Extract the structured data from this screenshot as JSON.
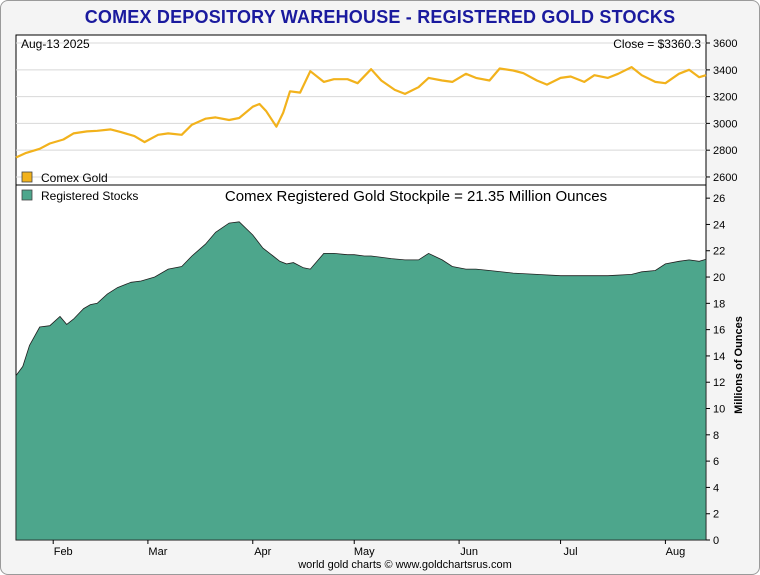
{
  "title": "COMEX DEPOSITORY WAREHOUSE - REGISTERED GOLD STOCKS",
  "date_label": "Aug-13  2025",
  "close_label": "Close = $3360.3",
  "subtitle": "Comex Registered Gold Stockpile = 21.35 Million Ounces",
  "credit": "world gold charts © www.goldchartsrus.com",
  "colors": {
    "title": "#1a1a9e",
    "gold_line": "#f2b21c",
    "stocks_fill": "#4da68c",
    "stocks_edge": "#1f1f1f"
  },
  "chart_data": [
    {
      "type": "line",
      "name": "gold-price",
      "legend": "Comex Gold",
      "legend_placement": "bottom-left",
      "y_ticks": [
        2600,
        2800,
        3000,
        3200,
        3400,
        3600
      ],
      "ylim": [
        2540,
        3660
      ],
      "xlim": [
        "2025-01-21",
        "2025-08-13"
      ],
      "grid": true,
      "x": [
        "2025-01-21",
        "2025-01-24",
        "2025-01-28",
        "2025-01-31",
        "2025-02-04",
        "2025-02-07",
        "2025-02-11",
        "2025-02-14",
        "2025-02-18",
        "2025-02-21",
        "2025-02-25",
        "2025-02-28",
        "2025-03-04",
        "2025-03-07",
        "2025-03-11",
        "2025-03-14",
        "2025-03-18",
        "2025-03-21",
        "2025-03-25",
        "2025-03-28",
        "2025-04-01",
        "2025-04-03",
        "2025-04-05",
        "2025-04-08",
        "2025-04-10",
        "2025-04-12",
        "2025-04-15",
        "2025-04-18",
        "2025-04-22",
        "2025-04-25",
        "2025-04-29",
        "2025-05-02",
        "2025-05-06",
        "2025-05-09",
        "2025-05-13",
        "2025-05-16",
        "2025-05-20",
        "2025-05-23",
        "2025-05-27",
        "2025-05-30",
        "2025-06-03",
        "2025-06-06",
        "2025-06-10",
        "2025-06-13",
        "2025-06-17",
        "2025-06-20",
        "2025-06-24",
        "2025-06-27",
        "2025-07-01",
        "2025-07-04",
        "2025-07-08",
        "2025-07-11",
        "2025-07-15",
        "2025-07-18",
        "2025-07-22",
        "2025-07-25",
        "2025-07-29",
        "2025-08-01",
        "2025-08-05",
        "2025-08-08",
        "2025-08-11",
        "2025-08-13"
      ],
      "values": [
        2745,
        2780,
        2810,
        2850,
        2880,
        2925,
        2940,
        2945,
        2955,
        2935,
        2905,
        2860,
        2915,
        2925,
        2915,
        2990,
        3035,
        3045,
        3025,
        3040,
        3125,
        3145,
        3090,
        2975,
        3080,
        3240,
        3230,
        3390,
        3310,
        3330,
        3330,
        3300,
        3405,
        3320,
        3250,
        3220,
        3270,
        3340,
        3320,
        3310,
        3370,
        3340,
        3320,
        3410,
        3395,
        3375,
        3320,
        3290,
        3340,
        3350,
        3310,
        3360,
        3340,
        3370,
        3420,
        3360,
        3310,
        3300,
        3370,
        3400,
        3345,
        3360
      ]
    },
    {
      "type": "area",
      "name": "registered-stocks",
      "legend": "Registered Stocks",
      "legend_placement": "top-left",
      "ylabel": "Millions of Ounces",
      "y_ticks": [
        0,
        2,
        4,
        6,
        8,
        10,
        12,
        14,
        16,
        18,
        20,
        22,
        24,
        26
      ],
      "ylim": [
        0,
        27
      ],
      "xlim": [
        "2025-01-21",
        "2025-08-13"
      ],
      "x_ticks": [
        "Feb",
        "Mar",
        "Apr",
        "May",
        "Jun",
        "Jul",
        "Aug"
      ],
      "grid": false,
      "x": [
        "2025-01-21",
        "2025-01-23",
        "2025-01-25",
        "2025-01-28",
        "2025-01-31",
        "2025-02-03",
        "2025-02-05",
        "2025-02-07",
        "2025-02-10",
        "2025-02-12",
        "2025-02-14",
        "2025-02-17",
        "2025-02-20",
        "2025-02-24",
        "2025-02-27",
        "2025-03-03",
        "2025-03-07",
        "2025-03-11",
        "2025-03-14",
        "2025-03-18",
        "2025-03-21",
        "2025-03-25",
        "2025-03-28",
        "2025-04-01",
        "2025-04-04",
        "2025-04-07",
        "2025-04-09",
        "2025-04-11",
        "2025-04-13",
        "2025-04-16",
        "2025-04-18",
        "2025-04-22",
        "2025-04-25",
        "2025-04-29",
        "2025-05-01",
        "2025-05-04",
        "2025-05-06",
        "2025-05-12",
        "2025-05-16",
        "2025-05-20",
        "2025-05-23",
        "2025-05-27",
        "2025-05-30",
        "2025-06-03",
        "2025-06-06",
        "2025-06-10",
        "2025-06-17",
        "2025-06-24",
        "2025-07-01",
        "2025-07-08",
        "2025-07-15",
        "2025-07-22",
        "2025-07-25",
        "2025-07-29",
        "2025-08-01",
        "2025-08-05",
        "2025-08-08",
        "2025-08-11",
        "2025-08-13"
      ],
      "values": [
        12.5,
        13.2,
        14.8,
        16.2,
        16.3,
        17.0,
        16.4,
        16.8,
        17.6,
        17.9,
        18.0,
        18.7,
        19.2,
        19.6,
        19.7,
        20.0,
        20.6,
        20.8,
        21.6,
        22.5,
        23.4,
        24.1,
        24.2,
        23.2,
        22.2,
        21.6,
        21.2,
        21.0,
        21.1,
        20.7,
        20.6,
        21.8,
        21.8,
        21.7,
        21.7,
        21.6,
        21.6,
        21.4,
        21.3,
        21.3,
        21.8,
        21.3,
        20.8,
        20.6,
        20.6,
        20.5,
        20.3,
        20.2,
        20.1,
        20.1,
        20.1,
        20.2,
        20.4,
        20.5,
        21.0,
        21.2,
        21.3,
        21.2,
        21.35
      ]
    }
  ]
}
